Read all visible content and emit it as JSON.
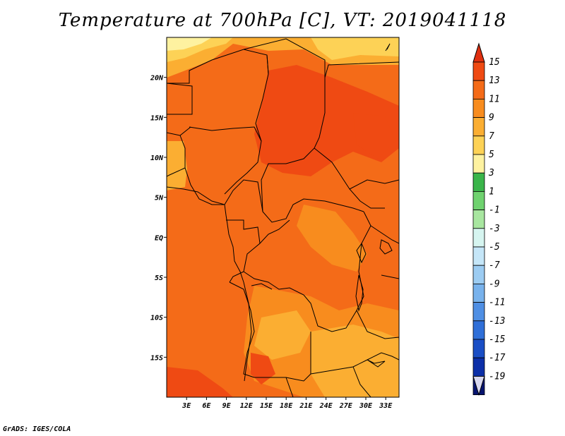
{
  "title": "Temperature at 700hPa [C], VT: 2019041118",
  "credit": "GrADS: IGES/COLA",
  "map": {
    "lon_range": [
      0,
      35
    ],
    "lat_range": [
      -20,
      25
    ],
    "lat_ticks": [
      "20N",
      "15N",
      "10N",
      "5N",
      "EQ",
      "5S",
      "10S",
      "15S"
    ],
    "lat_values": [
      20,
      15,
      10,
      5,
      0,
      -5,
      -10,
      -15
    ],
    "lon_ticks": [
      "3E",
      "6E",
      "9E",
      "12E",
      "15E",
      "18E",
      "21E",
      "24E",
      "27E",
      "30E",
      "33E"
    ],
    "lon_values": [
      3,
      6,
      9,
      12,
      15,
      18,
      21,
      24,
      27,
      30,
      33
    ]
  },
  "colorbar": {
    "labels": [
      "15",
      "13",
      "11",
      "9",
      "7",
      "5",
      "3",
      "1",
      "-1",
      "-3",
      "-5",
      "-7",
      "-9",
      "-11",
      "-13",
      "-15",
      "-17",
      "-19"
    ],
    "colors": [
      "#e03010",
      "#ef4a13",
      "#f46b18",
      "#f88c1e",
      "#fbae32",
      "#fdd256",
      "#fef2a0",
      "#3ab54a",
      "#6fd26f",
      "#a8e6a0",
      "#d6f5f0",
      "#c5e6f8",
      "#9cccf2",
      "#78b2ec",
      "#4f8fe4",
      "#2f6fd8",
      "#1a4ec5",
      "#0c2fa8",
      "#071470"
    ],
    "top_color": "#e03010",
    "bottom_color": "#d8d8f0"
  },
  "palette": {
    "deep": "#ef4a13",
    "mid": "#f46b18",
    "light": "#f88c1e",
    "warm": "#fbae32",
    "pale": "#fdd256",
    "paler": "#fef2a0",
    "border": "#000000"
  }
}
